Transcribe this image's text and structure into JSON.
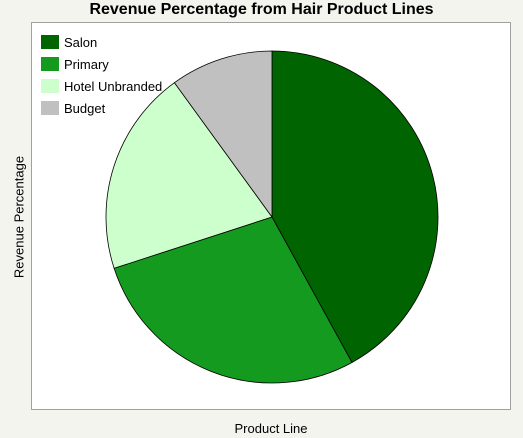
{
  "chart_data": {
    "type": "pie",
    "title": "Revenue Percentage from Hair Product Lines",
    "xlabel": "Product Line",
    "ylabel": "Revenue Percentage",
    "categories": [
      "Salon",
      "Primary",
      "Hotel Unbranded",
      "Budget"
    ],
    "values": [
      42,
      28,
      20,
      10
    ],
    "colors": [
      "#006400",
      "#149a1e",
      "#ccffcc",
      "#c0c0c0"
    ],
    "start_angle_deg": 0,
    "direction": "clockwise",
    "legend_position": "top-left"
  }
}
